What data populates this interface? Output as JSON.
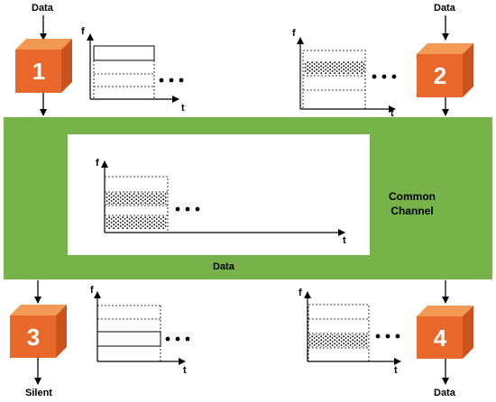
{
  "labels": {
    "data_in_1": "Data",
    "data_in_2": "Data",
    "channel_data": "Data",
    "silent_out_3": "Silent",
    "data_out_4": "Data",
    "common_channel": "Common\nChannel"
  },
  "stations": [
    {
      "id": "1",
      "number": "1"
    },
    {
      "id": "2",
      "number": "2"
    },
    {
      "id": "3",
      "number": "3"
    },
    {
      "id": "4",
      "number": "4"
    }
  ],
  "axes": {
    "f": "f",
    "t": "t"
  },
  "colors": {
    "channel_green": "#77b348",
    "cube_front": "#e8672a",
    "cube_top": "#f39a57",
    "cube_side": "#c9531c"
  }
}
